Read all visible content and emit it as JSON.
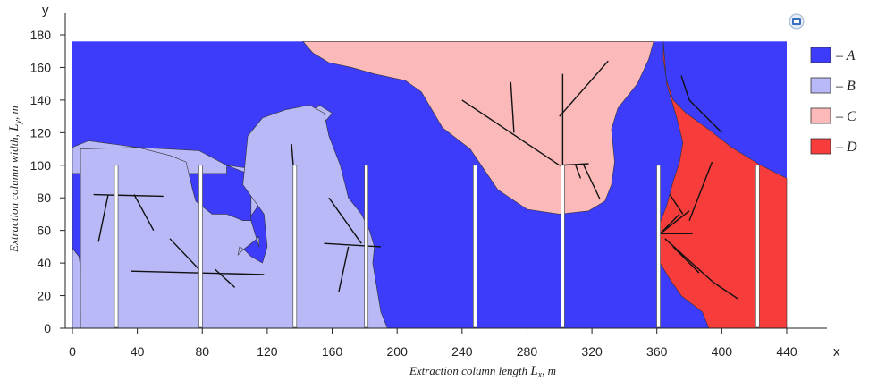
{
  "chart_data": {
    "type": "area",
    "title": "",
    "xlabel": "Extraction column length",
    "xlabel_symbol": "L",
    "xlabel_sub": "x",
    "xlabel_unit": ", m",
    "ylabel": "Extraction column width,",
    "ylabel_symbol": "L",
    "ylabel_sub": "y",
    "ylabel_unit": ", m",
    "x_axis_letter": "x",
    "y_axis_letter": "y",
    "xlim": [
      0,
      440
    ],
    "ylim": [
      0,
      180
    ],
    "x_ticks": [
      0,
      40,
      80,
      120,
      160,
      200,
      240,
      280,
      320,
      360,
      400,
      440
    ],
    "y_ticks": [
      0,
      20,
      40,
      60,
      80,
      100,
      120,
      140,
      160,
      180
    ],
    "legend_position": "right",
    "legend": [
      {
        "key": "A",
        "label": "– A",
        "color": "#3c3cfa"
      },
      {
        "key": "B",
        "label": "– B",
        "color": "#b9b9f7"
      },
      {
        "key": "C",
        "label": "– C",
        "color": "#fbb9b9"
      },
      {
        "key": "D",
        "label": "– D",
        "color": "#f73c3c"
      }
    ],
    "domain": {
      "x0": 0,
      "x1": 440,
      "y0": 0,
      "y1": 176
    },
    "regions": [
      {
        "name": "B",
        "polygons": [
          [
            [
              0,
              0
            ],
            [
              0,
              49
            ],
            [
              4,
              44
            ],
            [
              6,
              30
            ],
            [
              5,
              0
            ]
          ],
          [
            [
              5,
              0
            ],
            [
              6,
              30
            ],
            [
              4,
              44
            ],
            [
              0,
              49
            ],
            [
              0,
              111
            ],
            [
              10,
              115
            ],
            [
              40,
              111
            ],
            [
              78,
              109
            ],
            [
              95,
              100
            ],
            [
              110,
              98
            ],
            [
              110,
              66
            ],
            [
              110,
              69
            ],
            [
              115,
              76
            ],
            [
              118,
              83
            ],
            [
              128,
              100
            ],
            [
              131,
              116
            ],
            [
              146,
              118
            ],
            [
              155,
              126
            ],
            [
              160,
              132
            ],
            [
              152,
              137
            ],
            [
              139,
              122
            ],
            [
              135,
              109
            ],
            [
              130,
              100
            ],
            [
              120,
              90
            ],
            [
              115,
              92
            ],
            [
              108,
              95
            ],
            [
              100,
              98
            ],
            [
              95,
              100
            ],
            [
              95,
              95
            ],
            [
              0,
              95
            ],
            [
              0,
              0
            ]
          ],
          [
            [
              5,
              0
            ],
            [
              5,
              110
            ],
            [
              40,
              111
            ],
            [
              60,
              106
            ],
            [
              70,
              102
            ],
            [
              74,
              85
            ],
            [
              76,
              78
            ],
            [
              86,
              70
            ],
            [
              95,
              70
            ],
            [
              105,
              66
            ],
            [
              110,
              66
            ],
            [
              115,
              50
            ],
            [
              115,
              56
            ],
            [
              105,
              48
            ],
            [
              102,
              45
            ],
            [
              103,
              50
            ],
            [
              106,
              48
            ],
            [
              110,
              44
            ],
            [
              117,
              40
            ],
            [
              120,
              50
            ],
            [
              118,
              70
            ],
            [
              105,
              88
            ],
            [
              108,
              118
            ],
            [
              117,
              129
            ],
            [
              131,
              134
            ],
            [
              146,
              137
            ],
            [
              155,
              132
            ],
            [
              158,
              118
            ],
            [
              165,
              100
            ],
            [
              168,
              88
            ],
            [
              170,
              80
            ],
            [
              178,
              70
            ],
            [
              183,
              60
            ],
            [
              186,
              50
            ],
            [
              185,
              40
            ],
            [
              190,
              10
            ],
            [
              194,
              0
            ]
          ]
        ]
      },
      {
        "name": "C",
        "polygons": [
          [
            [
              142,
              176
            ],
            [
              148,
              169
            ],
            [
              158,
              163
            ],
            [
              172,
              160
            ],
            [
              186,
              156
            ],
            [
              205,
              152
            ],
            [
              215,
              145
            ],
            [
              228,
              123
            ],
            [
              245,
              110
            ],
            [
              262,
              85
            ],
            [
              280,
              73
            ],
            [
              300,
              70
            ],
            [
              318,
              72
            ],
            [
              328,
              78
            ],
            [
              332,
              88
            ],
            [
              334,
              102
            ],
            [
              332,
              122
            ],
            [
              336,
              135
            ],
            [
              348,
              150
            ],
            [
              355,
              165
            ],
            [
              358,
              176
            ]
          ]
        ]
      },
      {
        "name": "D",
        "polygons": [
          [
            [
              364,
              176
            ],
            [
              364,
              165
            ],
            [
              366,
              152
            ],
            [
              370,
              140
            ],
            [
              378,
              132
            ],
            [
              392,
              122
            ],
            [
              406,
              111
            ],
            [
              424,
              100
            ],
            [
              440,
              92
            ],
            [
              440,
              0
            ],
            [
              392,
              0
            ],
            [
              388,
              10
            ],
            [
              375,
              20
            ],
            [
              368,
              30
            ],
            [
              362,
              40
            ],
            [
              360,
              50
            ],
            [
              362,
              65
            ],
            [
              366,
              75
            ],
            [
              370,
              90
            ],
            [
              374,
              102
            ],
            [
              376,
              114
            ],
            [
              372,
              130
            ],
            [
              366,
              150
            ],
            [
              364,
              176
            ]
          ]
        ]
      }
    ],
    "boreholes": [
      {
        "x": 27,
        "y0": 0,
        "y1": 100
      },
      {
        "x": 79,
        "y0": 0,
        "y1": 100
      },
      {
        "x": 137,
        "y0": 0,
        "y1": 100
      },
      {
        "x": 181,
        "y0": 0,
        "y1": 100
      },
      {
        "x": 248,
        "y0": 0,
        "y1": 100
      },
      {
        "x": 302,
        "y0": 0,
        "y1": 100
      },
      {
        "x": 361,
        "y0": 0,
        "y1": 100
      },
      {
        "x": 422,
        "y0": 0,
        "y1": 100
      }
    ],
    "fractures": [
      [
        [
          13,
          82
        ],
        [
          56,
          81
        ]
      ],
      [
        [
          22,
          82
        ],
        [
          16,
          53
        ]
      ],
      [
        [
          38,
          82
        ],
        [
          50,
          60
        ]
      ],
      [
        [
          36,
          35
        ],
        [
          118,
          33
        ]
      ],
      [
        [
          60,
          55
        ],
        [
          80,
          34
        ]
      ],
      [
        [
          88,
          36
        ],
        [
          100,
          25
        ]
      ],
      [
        [
          135,
          113
        ],
        [
          136,
          100
        ]
      ],
      [
        [
          155,
          52
        ],
        [
          190,
          50
        ]
      ],
      [
        [
          158,
          80
        ],
        [
          178,
          52
        ]
      ],
      [
        [
          170,
          50
        ],
        [
          164,
          22
        ]
      ],
      [
        [
          240,
          140
        ],
        [
          300,
          100
        ]
      ],
      [
        [
          270,
          151
        ],
        [
          272,
          120
        ]
      ],
      [
        [
          302,
          156
        ],
        [
          302,
          100
        ]
      ],
      [
        [
          300,
          130
        ],
        [
          330,
          164
        ]
      ],
      [
        [
          300,
          100
        ],
        [
          318,
          101
        ]
      ],
      [
        [
          315,
          100
        ],
        [
          325,
          79
        ]
      ],
      [
        [
          313,
          92
        ],
        [
          310,
          100
        ]
      ],
      [
        [
          362,
          58
        ],
        [
          382,
          58
        ]
      ],
      [
        [
          362,
          58
        ],
        [
          374,
          70
        ]
      ],
      [
        [
          362,
          58
        ],
        [
          380,
          72
        ]
      ],
      [
        [
          368,
          82
        ],
        [
          376,
          70
        ]
      ],
      [
        [
          380,
          66
        ],
        [
          394,
          102
        ]
      ],
      [
        [
          375,
          155
        ],
        [
          380,
          140
        ]
      ],
      [
        [
          380,
          140
        ],
        [
          400,
          120
        ]
      ],
      [
        [
          365,
          55
        ],
        [
          386,
          36
        ]
      ],
      [
        [
          386,
          36
        ],
        [
          395,
          28
        ]
      ],
      [
        [
          395,
          28
        ],
        [
          410,
          18
        ]
      ],
      [
        [
          370,
          50
        ],
        [
          386,
          34
        ]
      ]
    ]
  }
}
